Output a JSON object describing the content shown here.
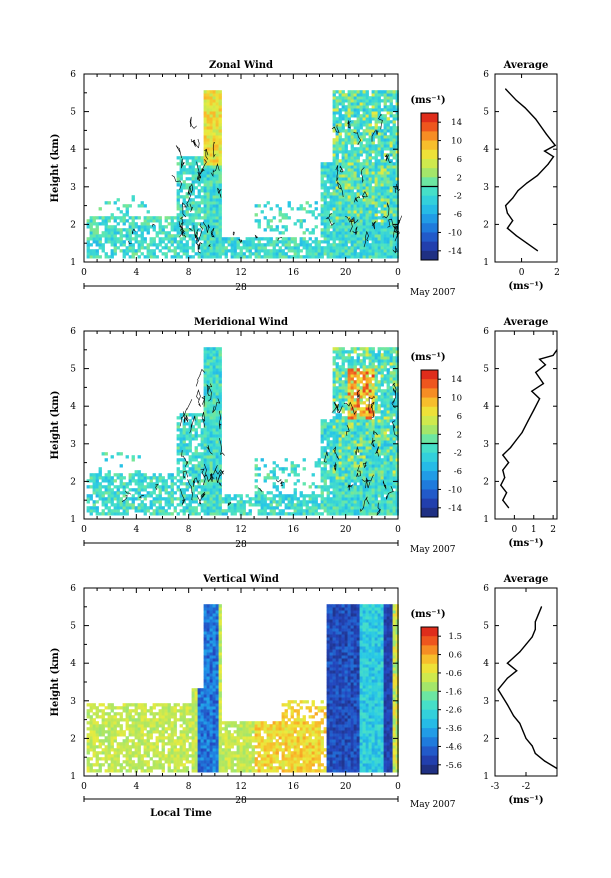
{
  "chart_data": [
    {
      "type": "heatmap",
      "title": "Zonal Wind",
      "ylabel": "Height (km)",
      "xlabel": "",
      "ylim": [
        1,
        6
      ],
      "xlim": [
        0,
        24
      ],
      "y_ticks": [
        "1",
        "2",
        "3",
        "4",
        "5",
        "6"
      ],
      "x_ticks": [
        "0",
        "4",
        "8",
        "12",
        "16",
        "20",
        "0"
      ],
      "date_label": "28",
      "month_label": "May 2007",
      "colorbar": {
        "unit": "(ms⁻¹)",
        "ticks": [
          "14",
          "10",
          "6",
          "2",
          "-2",
          "-6",
          "-10",
          "-14"
        ],
        "range": [
          -16,
          16
        ]
      },
      "profile": {
        "title": "Average",
        "xlabel": "(ms⁻¹)",
        "x_ticks": [
          "0",
          "2"
        ],
        "xlim": [
          -1.5,
          2.0
        ],
        "y_ticks": [
          "1",
          "2",
          "3",
          "4",
          "5",
          "6"
        ],
        "ylim": [
          1,
          6
        ],
        "x": [
          0.9,
          0.3,
          -0.3,
          -0.8,
          -0.5,
          -0.8,
          -0.9,
          -0.5,
          -0.2,
          0.3,
          0.9,
          1.5,
          1.8,
          1.3,
          1.9,
          1.4,
          0.8,
          0.2,
          -0.3,
          -0.7,
          -0.9
        ],
        "y": [
          1.3,
          1.5,
          1.7,
          1.9,
          2.1,
          2.3,
          2.5,
          2.7,
          2.9,
          3.1,
          3.3,
          3.6,
          3.8,
          3.95,
          4.1,
          4.4,
          4.8,
          5.1,
          5.3,
          5.5,
          5.6
        ]
      }
    },
    {
      "type": "heatmap",
      "title": "Meridional Wind",
      "ylabel": "Height (km)",
      "xlabel": "",
      "ylim": [
        1,
        6
      ],
      "xlim": [
        0,
        24
      ],
      "y_ticks": [
        "1",
        "2",
        "3",
        "4",
        "5",
        "6"
      ],
      "x_ticks": [
        "0",
        "4",
        "8",
        "12",
        "16",
        "20",
        "0"
      ],
      "date_label": "28",
      "month_label": "May 2007",
      "colorbar": {
        "unit": "(ms⁻¹)",
        "ticks": [
          "14",
          "10",
          "6",
          "2",
          "-2",
          "-6",
          "-10",
          "-14"
        ],
        "range": [
          -16,
          16
        ]
      },
      "profile": {
        "title": "Average",
        "xlabel": "(ms⁻¹)",
        "x_ticks": [
          "0",
          "1",
          "2"
        ],
        "xlim": [
          -1.0,
          2.2
        ],
        "y_ticks": [
          "1",
          "2",
          "3",
          "4",
          "5",
          "6"
        ],
        "ylim": [
          1,
          6
        ],
        "x": [
          -0.3,
          -0.6,
          -0.4,
          -0.7,
          -0.5,
          -0.6,
          -0.3,
          -0.6,
          -0.2,
          0.1,
          0.4,
          0.7,
          1.0,
          1.3,
          0.9,
          1.5,
          1.1,
          1.6,
          1.3,
          2.0,
          2.2
        ],
        "y": [
          1.3,
          1.5,
          1.7,
          1.9,
          2.1,
          2.3,
          2.5,
          2.7,
          2.9,
          3.1,
          3.3,
          3.6,
          3.9,
          4.2,
          4.4,
          4.6,
          4.9,
          5.1,
          5.25,
          5.35,
          5.5
        ]
      }
    },
    {
      "type": "heatmap",
      "title": "Vertical Wind",
      "ylabel": "Height (km)",
      "xlabel": "Local Time",
      "ylim": [
        1,
        6
      ],
      "xlim": [
        0,
        24
      ],
      "y_ticks": [
        "1",
        "2",
        "3",
        "4",
        "5",
        "6"
      ],
      "x_ticks": [
        "0",
        "4",
        "8",
        "12",
        "16",
        "20",
        "0"
      ],
      "date_label": "28",
      "month_label": "May 2007",
      "colorbar": {
        "unit": "(ms⁻¹)",
        "ticks": [
          "1.5",
          "0.6",
          "-0.6",
          "-1.6",
          "-2.6",
          "-3.6",
          "-4.6",
          "-5.6"
        ],
        "range": [
          -6.0,
          2.0
        ]
      },
      "profile": {
        "title": "Average",
        "xlabel": "(ms⁻¹)",
        "x_ticks": [
          "-3",
          "-2"
        ],
        "xlim": [
          -3.0,
          -1.0
        ],
        "y_ticks": [
          "1",
          "2",
          "3",
          "4",
          "5",
          "6"
        ],
        "ylim": [
          1,
          6
        ],
        "x": [
          -1.0,
          -1.4,
          -1.7,
          -1.8,
          -2.0,
          -2.1,
          -2.2,
          -2.4,
          -2.6,
          -2.9,
          -2.6,
          -2.3,
          -2.6,
          -2.2,
          -2.0,
          -1.8,
          -1.7,
          -1.7,
          -1.6,
          -1.5
        ],
        "y": [
          1.2,
          1.4,
          1.6,
          1.8,
          2.0,
          2.2,
          2.4,
          2.6,
          2.9,
          3.3,
          3.6,
          3.8,
          4.0,
          4.3,
          4.5,
          4.7,
          4.9,
          5.1,
          5.3,
          5.5
        ]
      }
    }
  ]
}
